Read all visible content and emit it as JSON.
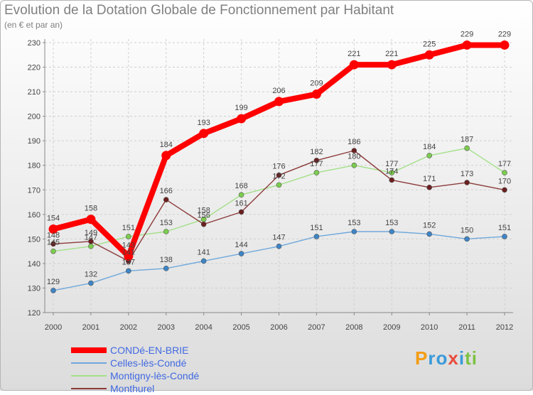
{
  "header": {
    "title": "Evolution de la Dotation Globale de Fonctionnement par Habitant",
    "subtitle": "(en € et par an)"
  },
  "chart_data": {
    "type": "line",
    "title": "Evolution de la Dotation Globale de Fonctionnement par Habitant",
    "subtitle": "(en € et par an)",
    "xlabel": "",
    "ylabel": "",
    "x": [
      2000,
      2001,
      2002,
      2003,
      2004,
      2005,
      2006,
      2007,
      2008,
      2009,
      2010,
      2011,
      2012
    ],
    "ylim": [
      120,
      230
    ],
    "yticks": [
      120,
      130,
      140,
      150,
      160,
      170,
      180,
      190,
      200,
      210,
      220,
      230
    ],
    "grid": true,
    "legend_position": "bottom-left",
    "series": [
      {
        "name": "CONDé-EN-BRIE",
        "values": [
          154,
          158,
          143,
          184,
          193,
          199,
          206,
          209,
          221,
          221,
          225,
          229,
          229
        ],
        "color": "#ff0000",
        "marker_color": "#ff0000",
        "emphasis": "thick"
      },
      {
        "name": "Celles-lès-Condé",
        "values": [
          129,
          132,
          137,
          138,
          141,
          144,
          147,
          151,
          153,
          153,
          152,
          150,
          151
        ],
        "color": "#6fa8dc",
        "marker_color": "#3d85c6",
        "emphasis": "thin"
      },
      {
        "name": "Montigny-lès-Condé",
        "values": [
          145,
          147,
          151,
          153,
          158,
          168,
          172,
          177,
          180,
          177,
          184,
          187,
          177
        ],
        "color": "#a3e088",
        "marker_color": "#7ccd4f",
        "emphasis": "thin"
      },
      {
        "name": "Monthurel",
        "values": [
          148,
          149,
          141,
          166,
          156,
          161,
          176,
          182,
          186,
          174,
          171,
          173,
          170
        ],
        "color": "#8b3a3a",
        "marker_color": "#6b1f1f",
        "emphasis": "thin"
      }
    ]
  },
  "logo": {
    "letters": [
      "P",
      "r",
      "o",
      "x",
      "i",
      "t",
      "i"
    ],
    "colors": [
      "#f39c12",
      "#3a9ad9",
      "#3a9ad9",
      "#e74c3c",
      "#3a9ad9",
      "#7cc242",
      "#7cc242"
    ]
  }
}
